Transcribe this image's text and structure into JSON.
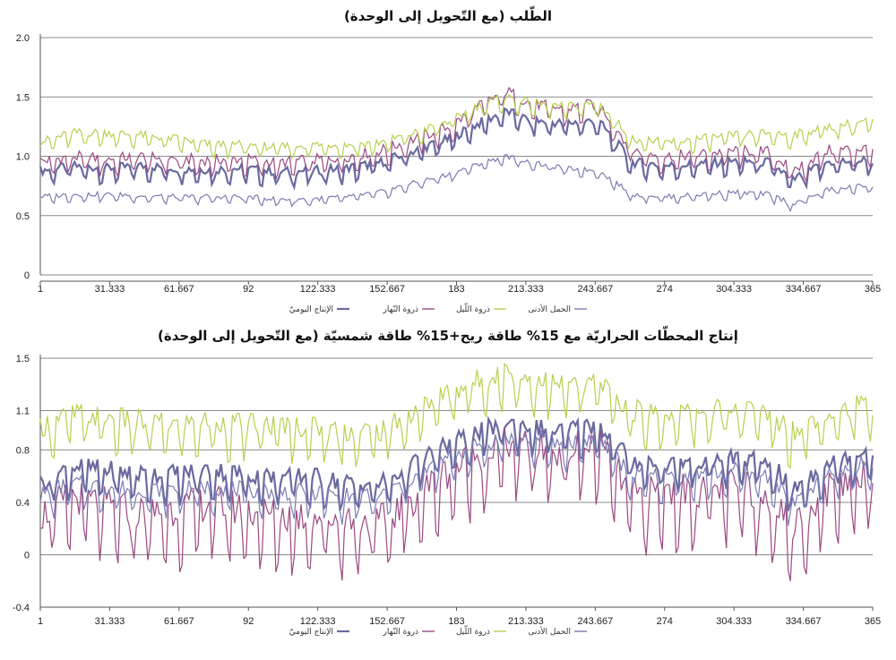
{
  "chart_data": [
    {
      "type": "line",
      "title": "الطّلب (مع التّحويل إلى الوحدة)",
      "xlabel": "",
      "ylabel": "",
      "xlim": [
        1,
        365
      ],
      "ylim": [
        0,
        2.0
      ],
      "y_ticks": [
        "0",
        "0.5",
        "1.0",
        "1.5",
        "2.0"
      ],
      "y_tick_values": [
        0,
        0.5,
        1.0,
        1.5,
        2.0
      ],
      "x_ticks": [
        "1",
        "31.333",
        "61.667",
        "92",
        "122.333",
        "152.667",
        "183",
        "213.333",
        "243.667",
        "274",
        "304.333",
        "334.667",
        "365"
      ],
      "x_tick_values": [
        1,
        31.333,
        61.667,
        92,
        122.333,
        152.667,
        183,
        213.333,
        243.667,
        274,
        304.333,
        334.667,
        365
      ],
      "grid": true,
      "legend_position": "bottom",
      "series": [
        {
          "name": "الإنتاج اليوميّ",
          "color": "#6a6aa0",
          "x": [
            1,
            15,
            30,
            45,
            60,
            75,
            90,
            105,
            120,
            135,
            150,
            165,
            180,
            195,
            205,
            215,
            230,
            245,
            260,
            275,
            290,
            305,
            320,
            330,
            345,
            365
          ],
          "values": [
            0.88,
            0.92,
            0.9,
            0.92,
            0.9,
            0.89,
            0.9,
            0.87,
            0.88,
            0.9,
            0.95,
            1.05,
            1.15,
            1.3,
            1.38,
            1.3,
            1.28,
            1.3,
            0.95,
            0.92,
            0.94,
            0.96,
            0.95,
            0.8,
            0.95,
            0.97
          ]
        },
        {
          "name": "ذروة النّهار",
          "color": "#9a4a82",
          "x": [
            1,
            15,
            30,
            45,
            60,
            75,
            90,
            105,
            120,
            135,
            150,
            165,
            180,
            195,
            205,
            215,
            230,
            245,
            260,
            275,
            290,
            305,
            320,
            330,
            345,
            365
          ],
          "values": [
            0.96,
            1.0,
            0.98,
            1.0,
            0.98,
            0.97,
            0.98,
            0.95,
            0.97,
            1.0,
            1.05,
            1.15,
            1.25,
            1.45,
            1.55,
            1.45,
            1.4,
            1.45,
            1.05,
            1.0,
            1.02,
            1.05,
            1.04,
            0.88,
            1.05,
            1.07
          ]
        },
        {
          "name": "ذروة اللّيل",
          "color": "#b6d14f",
          "x": [
            1,
            15,
            30,
            45,
            60,
            75,
            90,
            105,
            120,
            135,
            150,
            165,
            180,
            195,
            205,
            215,
            230,
            245,
            260,
            275,
            290,
            305,
            320,
            330,
            345,
            365
          ],
          "values": [
            1.12,
            1.2,
            1.2,
            1.18,
            1.15,
            1.1,
            1.1,
            1.08,
            1.1,
            1.1,
            1.12,
            1.2,
            1.3,
            1.45,
            1.5,
            1.45,
            1.42,
            1.45,
            1.15,
            1.12,
            1.15,
            1.18,
            1.2,
            1.18,
            1.25,
            1.3
          ]
        },
        {
          "name": "الحمل الأدنى",
          "color": "#7c7cb5",
          "x": [
            1,
            15,
            30,
            45,
            60,
            75,
            90,
            105,
            120,
            135,
            150,
            165,
            180,
            195,
            205,
            215,
            230,
            245,
            260,
            275,
            290,
            305,
            320,
            330,
            345,
            365
          ],
          "values": [
            0.66,
            0.68,
            0.68,
            0.67,
            0.66,
            0.66,
            0.66,
            0.64,
            0.64,
            0.66,
            0.7,
            0.78,
            0.85,
            0.95,
            1.0,
            0.95,
            0.9,
            0.88,
            0.68,
            0.66,
            0.68,
            0.7,
            0.68,
            0.6,
            0.72,
            0.76
          ]
        }
      ]
    },
    {
      "type": "line",
      "title": "إنتاج المحطّات الحراريّة مع 15% طاقة ريح+15% طاقة شمسيّة (مع التّحويل إلى الوحدة)",
      "xlabel": "",
      "ylabel": "",
      "xlim": [
        1,
        365
      ],
      "ylim": [
        -0.4,
        1.5
      ],
      "y_ticks": [
        "-0.4",
        "0",
        "0.4",
        "0.8",
        "1.1",
        "1.5"
      ],
      "y_tick_values": [
        -0.4,
        0,
        0.4,
        0.8,
        1.1,
        1.5
      ],
      "x_ticks": [
        "1",
        "31.333",
        "61.667",
        "92",
        "122.333",
        "152.667",
        "183",
        "213.333",
        "243.667",
        "274",
        "304.333",
        "334.667",
        "365"
      ],
      "x_tick_values": [
        1,
        31.333,
        61.667,
        92,
        122.333,
        152.667,
        183,
        213.333,
        243.667,
        274,
        304.333,
        334.667,
        365
      ],
      "grid": true,
      "legend_position": "bottom",
      "series": [
        {
          "name": "الإنتاج اليوميّ",
          "color": "#6a6aa0",
          "x": [
            1,
            15,
            30,
            45,
            60,
            75,
            90,
            105,
            120,
            135,
            150,
            165,
            180,
            195,
            205,
            215,
            230,
            245,
            260,
            275,
            290,
            305,
            320,
            330,
            345,
            365
          ],
          "values": [
            0.55,
            0.68,
            0.65,
            0.62,
            0.62,
            0.65,
            0.62,
            0.6,
            0.6,
            0.55,
            0.55,
            0.7,
            0.85,
            0.95,
            1.02,
            0.98,
            0.95,
            1.0,
            0.72,
            0.7,
            0.72,
            0.74,
            0.7,
            0.5,
            0.7,
            0.82
          ]
        },
        {
          "name": "ذروة النّهار",
          "color": "#9a4a82",
          "x": [
            1,
            15,
            30,
            45,
            60,
            75,
            90,
            105,
            120,
            135,
            150,
            165,
            180,
            195,
            205,
            215,
            230,
            245,
            260,
            275,
            290,
            305,
            320,
            330,
            345,
            365
          ],
          "values": [
            0.3,
            0.45,
            0.38,
            0.32,
            0.35,
            0.4,
            0.35,
            0.3,
            0.3,
            0.28,
            0.25,
            0.45,
            0.65,
            0.78,
            0.85,
            0.82,
            0.8,
            0.85,
            0.45,
            0.48,
            0.5,
            0.52,
            0.45,
            0.2,
            0.5,
            0.65
          ]
        },
        {
          "name": "ذروة اللّيل",
          "color": "#b6d14f",
          "x": [
            1,
            15,
            30,
            45,
            60,
            75,
            90,
            105,
            120,
            135,
            150,
            165,
            180,
            195,
            205,
            215,
            230,
            245,
            260,
            275,
            290,
            305,
            320,
            330,
            345,
            365
          ],
          "values": [
            0.98,
            1.08,
            1.05,
            1.02,
            1.0,
            1.02,
            1.0,
            1.0,
            0.98,
            0.95,
            0.95,
            1.1,
            1.25,
            1.35,
            1.4,
            1.35,
            1.3,
            1.32,
            1.1,
            1.08,
            1.1,
            1.12,
            1.08,
            0.95,
            1.1,
            1.15
          ]
        },
        {
          "name": "الحمل الأدنى",
          "color": "#7c7cb5",
          "x": [
            1,
            15,
            30,
            45,
            60,
            75,
            90,
            105,
            120,
            135,
            150,
            165,
            180,
            195,
            205,
            215,
            230,
            245,
            260,
            275,
            290,
            305,
            320,
            330,
            345,
            365
          ],
          "values": [
            0.45,
            0.55,
            0.52,
            0.5,
            0.5,
            0.52,
            0.5,
            0.48,
            0.48,
            0.45,
            0.45,
            0.6,
            0.75,
            0.85,
            0.9,
            0.88,
            0.85,
            0.9,
            0.6,
            0.6,
            0.62,
            0.64,
            0.6,
            0.4,
            0.6,
            0.72
          ]
        }
      ]
    }
  ]
}
